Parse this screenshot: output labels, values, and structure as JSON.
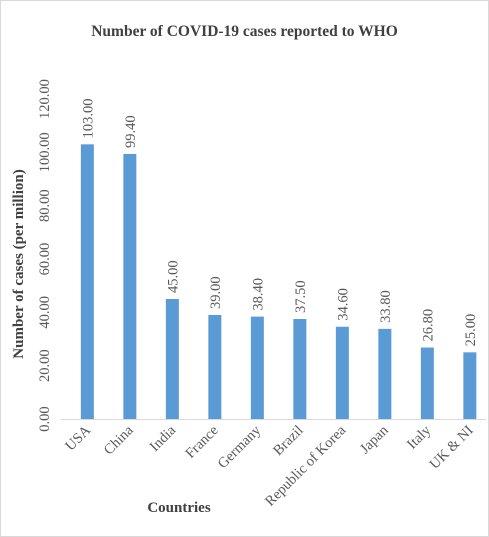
{
  "chart_data": {
    "type": "bar",
    "title": "Number of COVID-19 cases reported to WHO",
    "xlabel": "Countries",
    "ylabel": "Number of cases (per million)",
    "categories": [
      "USA",
      "China",
      "India",
      "France",
      "Germany",
      "Brazil",
      "Republic of Korea",
      "Japan",
      "Italy",
      "UK & NI"
    ],
    "values": [
      103.0,
      99.4,
      45.0,
      39.0,
      38.4,
      37.5,
      34.6,
      33.8,
      26.8,
      25.0
    ],
    "value_labels": [
      "103.00",
      "99.40",
      "45.00",
      "39.00",
      "38.40",
      "37.50",
      "34.60",
      "33.80",
      "26.80",
      "25.00"
    ],
    "y_ticks": [
      "0.00",
      "20.00",
      "40.00",
      "60.00",
      "80.00",
      "100.00",
      "120.00"
    ],
    "ylim": [
      0,
      120
    ],
    "grid": false,
    "legend": "none",
    "bar_color": "#5b9bd5",
    "axis_color": "#d9d9d9"
  }
}
